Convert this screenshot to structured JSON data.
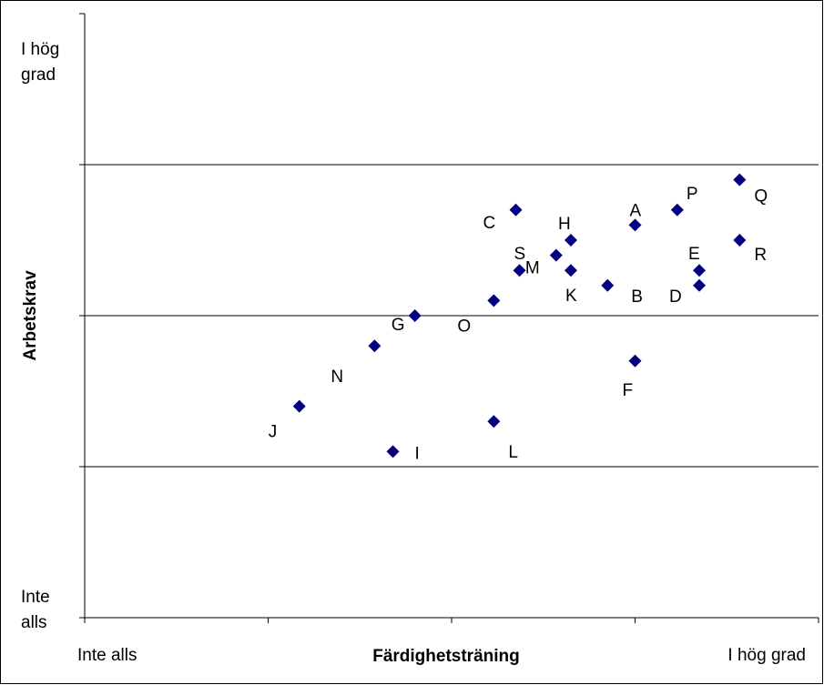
{
  "chart_data": {
    "type": "scatter",
    "xlabel": "Färdighetsträning",
    "ylabel": "Arbetskrav",
    "x_low_label": "Inte alls",
    "x_high_label": "I hög grad",
    "y_high_label_lines": [
      "I hög",
      "grad"
    ],
    "y_low_label_lines": [
      "Inte",
      "alls"
    ],
    "xlim": [
      0,
      4
    ],
    "ylim": [
      0,
      4
    ],
    "grid": "horizontal",
    "marker_color": "#000080",
    "points": [
      {
        "label": "A",
        "x": 3.0,
        "y": 2.6
      },
      {
        "label": "B",
        "x": 2.85,
        "y": 2.2
      },
      {
        "label": "C",
        "x": 2.35,
        "y": 2.7
      },
      {
        "label": "D",
        "x": 3.35,
        "y": 2.2
      },
      {
        "label": "E",
        "x": 3.35,
        "y": 2.3
      },
      {
        "label": "F",
        "x": 3.0,
        "y": 1.7
      },
      {
        "label": "G",
        "x": 1.8,
        "y": 2.0
      },
      {
        "label": "H",
        "x": 2.65,
        "y": 2.5
      },
      {
        "label": "I",
        "x": 1.68,
        "y": 1.1
      },
      {
        "label": "J",
        "x": 1.17,
        "y": 1.4
      },
      {
        "label": "K",
        "x": 2.65,
        "y": 2.3
      },
      {
        "label": "L",
        "x": 2.23,
        "y": 1.3
      },
      {
        "label": "M",
        "x": 2.57,
        "y": 2.4
      },
      {
        "label": "N",
        "x": 1.58,
        "y": 1.8
      },
      {
        "label": "O",
        "x": 2.23,
        "y": 2.1
      },
      {
        "label": "P",
        "x": 3.23,
        "y": 2.7
      },
      {
        "label": "Q",
        "x": 3.57,
        "y": 2.9
      },
      {
        "label": "R",
        "x": 3.57,
        "y": 2.5
      },
      {
        "label": "S",
        "x": 2.37,
        "y": 2.3
      }
    ]
  }
}
